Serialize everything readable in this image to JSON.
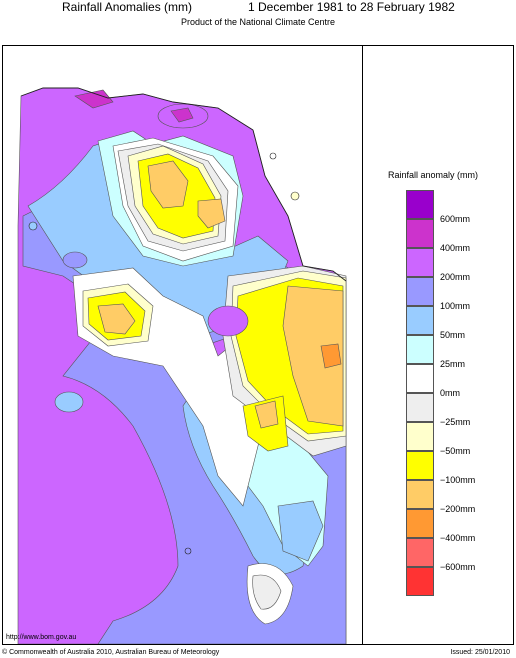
{
  "header": {
    "title": "Rainfall Anomalies (mm)",
    "period": "1 December 1981 to 28 February 1982",
    "subtitle": "Product of the National Climate Centre"
  },
  "legend": {
    "title": "Rainfall anomaly (mm)",
    "items": [
      {
        "label": "600mm",
        "color": "#9900cc"
      },
      {
        "label": "400mm",
        "color": "#cc33cc"
      },
      {
        "label": "200mm",
        "color": "#cc66ff"
      },
      {
        "label": "100mm",
        "color": "#9999ff"
      },
      {
        "label": "50mm",
        "color": "#99ccff"
      },
      {
        "label": "25mm",
        "color": "#ccffff"
      },
      {
        "label": "0mm",
        "color": "#ffffff"
      },
      {
        "label": "−25mm",
        "color": "#eeeeee"
      },
      {
        "label": "−50mm",
        "color": "#ffffcc"
      },
      {
        "label": "−100mm",
        "color": "#ffff00"
      },
      {
        "label": "−200mm",
        "color": "#ffcc66"
      },
      {
        "label": "−400mm",
        "color": "#ff9933"
      },
      {
        "label": "−600mm",
        "color": "#ff6666"
      },
      {
        "label": "",
        "color": "#ff3333"
      }
    ]
  },
  "footer": {
    "url": "http://www.bom.gov.au",
    "copyright": "© Commonwealth of Australia 2010, Australian Bureau of Meteorology",
    "issued": "Issued: 25/01/2010"
  }
}
